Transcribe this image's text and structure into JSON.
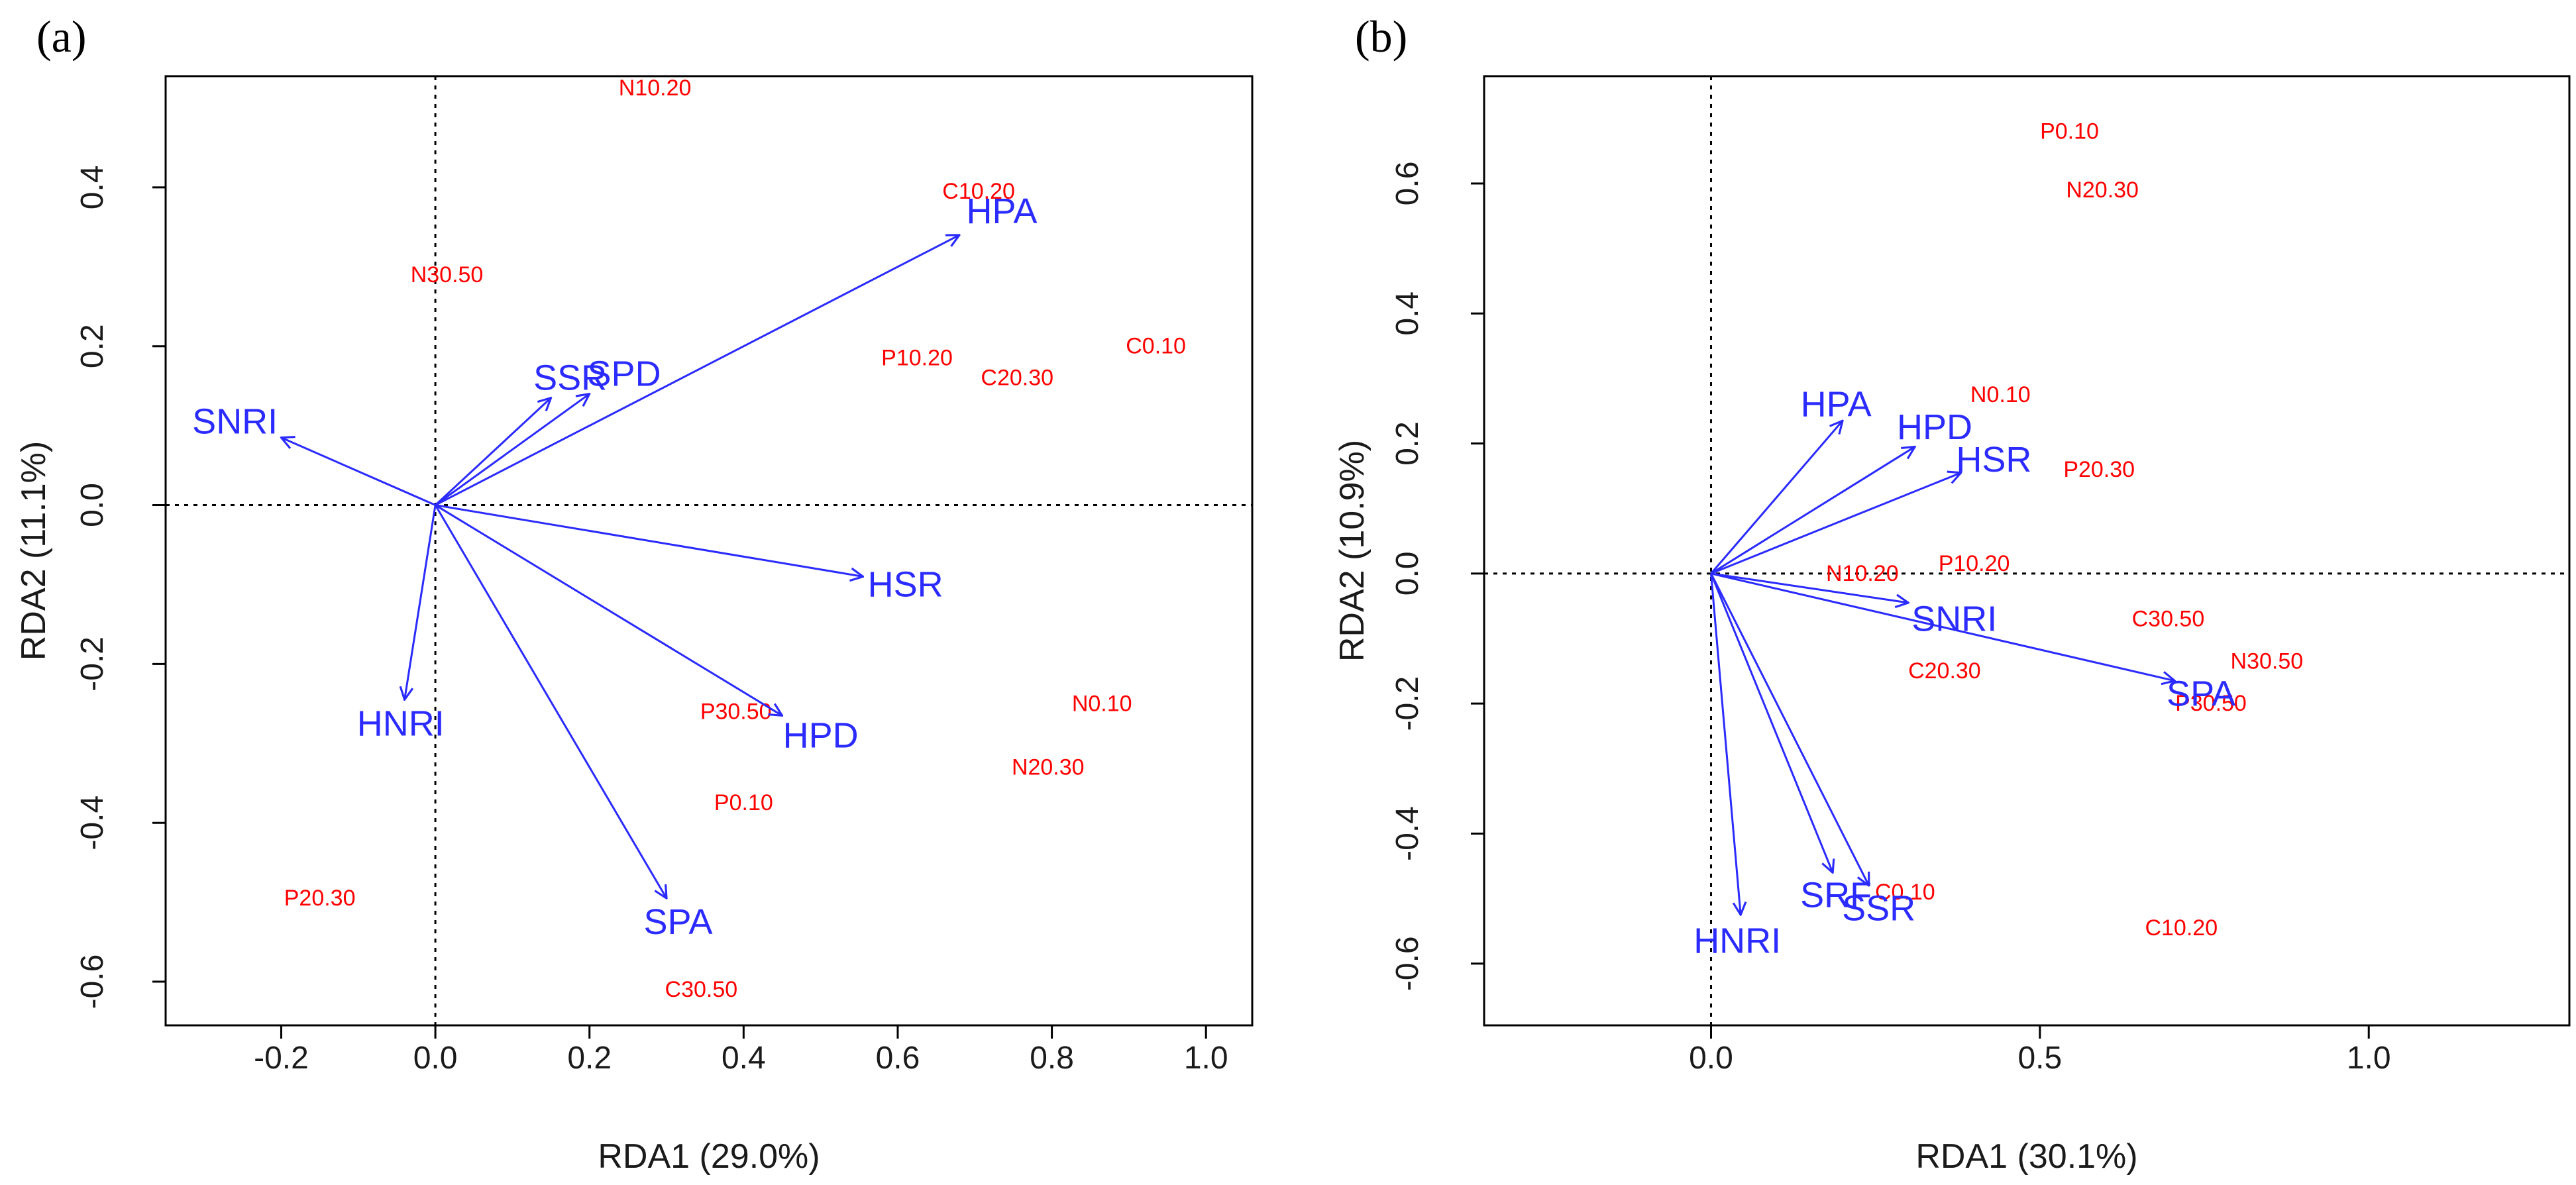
{
  "chart_data": [
    {
      "panel_label": "(a)",
      "type": "scatter",
      "subtype": "rda-biplot",
      "xlabel": "RDA1 (29.0%)",
      "ylabel": "RDA2 (11.1%)",
      "xlim": [
        -0.35,
        1.06
      ],
      "ylim": [
        -0.655,
        0.54
      ],
      "xticks": [
        -0.2,
        0.0,
        0.2,
        0.4,
        0.6,
        0.8,
        1.0
      ],
      "xtick_labels": [
        "-0.2",
        "0.0",
        "0.2",
        "0.4",
        "0.6",
        "0.8",
        "1.0"
      ],
      "yticks": [
        -0.6,
        -0.4,
        -0.2,
        0.0,
        0.2,
        0.4
      ],
      "ytick_labels": [
        "-0.6",
        "-0.4",
        "-0.2",
        "0.0",
        "0.2",
        "0.4"
      ],
      "reference_lines": {
        "x": 0,
        "y": 0,
        "style": "dotted"
      },
      "samples": [
        {
          "label": "N10.20",
          "x": 0.285,
          "y": 0.525
        },
        {
          "label": "C10.20",
          "x": 0.705,
          "y": 0.395
        },
        {
          "label": "N30.50",
          "x": 0.015,
          "y": 0.29
        },
        {
          "label": "C0.10",
          "x": 0.935,
          "y": 0.2
        },
        {
          "label": "P10.20",
          "x": 0.625,
          "y": 0.185
        },
        {
          "label": "C20.30",
          "x": 0.755,
          "y": 0.16
        },
        {
          "label": "P30.50",
          "x": 0.39,
          "y": -0.26
        },
        {
          "label": "N0.10",
          "x": 0.865,
          "y": -0.25
        },
        {
          "label": "N20.30",
          "x": 0.795,
          "y": -0.33
        },
        {
          "label": "P0.10",
          "x": 0.4,
          "y": -0.375
        },
        {
          "label": "P20.30",
          "x": -0.15,
          "y": -0.495
        },
        {
          "label": "C30.50",
          "x": 0.345,
          "y": -0.61
        }
      ],
      "variables": [
        {
          "label": "HPA",
          "x": 0.68,
          "y": 0.34,
          "label_x": 0.735,
          "label_y": 0.37
        },
        {
          "label": "SSR",
          "x": 0.15,
          "y": 0.135,
          "label_x": 0.175,
          "label_y": 0.16
        },
        {
          "label": "SPD",
          "x": 0.2,
          "y": 0.14,
          "label_x": 0.245,
          "label_y": 0.165
        },
        {
          "label": "SNRI",
          "x": -0.2,
          "y": 0.085,
          "label_x": -0.26,
          "label_y": 0.105
        },
        {
          "label": "HSR",
          "x": 0.555,
          "y": -0.09,
          "label_x": 0.61,
          "label_y": -0.1
        },
        {
          "label": "HPD",
          "x": 0.45,
          "y": -0.265,
          "label_x": 0.5,
          "label_y": -0.29
        },
        {
          "label": "HNRI",
          "x": -0.04,
          "y": -0.245,
          "label_x": -0.045,
          "label_y": -0.275
        },
        {
          "label": "SPA",
          "x": 0.3,
          "y": -0.495,
          "label_x": 0.315,
          "label_y": -0.525
        }
      ]
    },
    {
      "panel_label": "(b)",
      "type": "scatter",
      "subtype": "rda-biplot",
      "xlabel": "RDA1 (30.1%)",
      "ylabel": "RDA2 (10.9%)",
      "xlim": [
        -0.345,
        1.305
      ],
      "ylim": [
        -0.695,
        0.765
      ],
      "xticks": [
        0.0,
        0.5,
        1.0
      ],
      "xtick_labels": [
        "0.0",
        "0.5",
        "1.0"
      ],
      "yticks": [
        -0.6,
        -0.4,
        -0.2,
        0.0,
        0.2,
        0.4,
        0.6
      ],
      "ytick_labels": [
        "-0.6",
        "-0.4",
        "-0.2",
        "0.0",
        "0.2",
        "0.4",
        "0.6"
      ],
      "reference_lines": {
        "x": 0,
        "y": 0,
        "style": "dotted"
      },
      "samples": [
        {
          "label": "P0.10",
          "x": 0.545,
          "y": 0.68
        },
        {
          "label": "N20.30",
          "x": 0.595,
          "y": 0.59
        },
        {
          "label": "N0.10",
          "x": 0.44,
          "y": 0.275
        },
        {
          "label": "P20.30",
          "x": 0.59,
          "y": 0.16
        },
        {
          "label": "P10.20",
          "x": 0.4,
          "y": 0.015
        },
        {
          "label": "N10.20",
          "x": 0.23,
          "y": 0.0
        },
        {
          "label": "C30.50",
          "x": 0.695,
          "y": -0.07
        },
        {
          "label": "N30.50",
          "x": 0.845,
          "y": -0.135
        },
        {
          "label": "C20.30",
          "x": 0.355,
          "y": -0.15
        },
        {
          "label": "P30.50",
          "x": 0.76,
          "y": -0.2
        },
        {
          "label": "C0.10",
          "x": 0.295,
          "y": -0.49
        },
        {
          "label": "C10.20",
          "x": 0.715,
          "y": -0.545
        }
      ],
      "variables": [
        {
          "label": "HPA",
          "x": 0.2,
          "y": 0.235,
          "label_x": 0.19,
          "label_y": 0.26
        },
        {
          "label": "HPD",
          "x": 0.31,
          "y": 0.195,
          "label_x": 0.34,
          "label_y": 0.225
        },
        {
          "label": "HSR",
          "x": 0.38,
          "y": 0.155,
          "label_x": 0.43,
          "label_y": 0.175
        },
        {
          "label": "SNRI",
          "x": 0.3,
          "y": -0.045,
          "label_x": 0.37,
          "label_y": -0.07
        },
        {
          "label": "SPA",
          "x": 0.705,
          "y": -0.165,
          "label_x": 0.745,
          "label_y": -0.185
        },
        {
          "label": "SRF",
          "x": 0.185,
          "y": -0.46,
          "label_x": 0.19,
          "label_y": -0.495
        },
        {
          "label": "SSR",
          "x": 0.24,
          "y": -0.48,
          "label_x": 0.255,
          "label_y": -0.515
        },
        {
          "label": "HNRI",
          "x": 0.045,
          "y": -0.525,
          "label_x": 0.04,
          "label_y": -0.565
        }
      ]
    }
  ]
}
